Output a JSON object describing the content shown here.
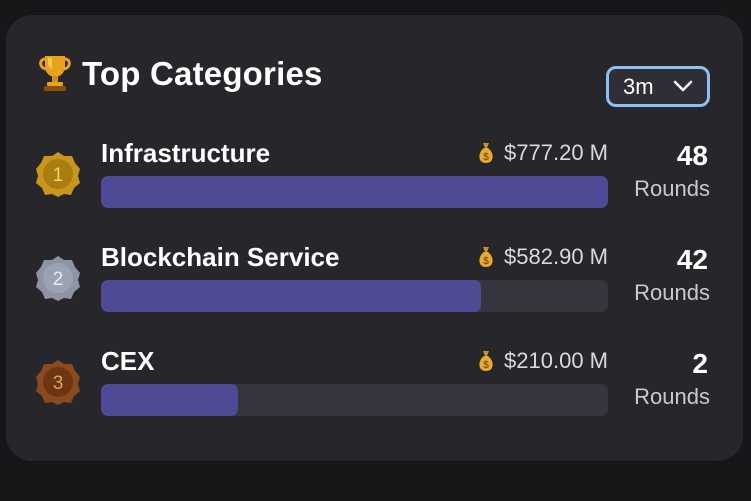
{
  "header": {
    "title": "Top Categories",
    "icon": "trophy-icon",
    "period_selected": "3m"
  },
  "colors": {
    "bar_fill": "#4f4a96",
    "bar_track": "#35353d",
    "gold": "#c9961c",
    "silver": "#8e94a4",
    "bronze": "#8a4a1c",
    "dropdown_border": "#8fc0f2"
  },
  "categories": [
    {
      "rank": "1",
      "name": "Infrastructure",
      "amount": "$777.20 M",
      "rounds": "48",
      "rounds_label": "Rounds",
      "share": 1.0
    },
    {
      "rank": "2",
      "name": "Blockchain Service",
      "amount": "$582.90 M",
      "rounds": "42",
      "rounds_label": "Rounds",
      "share": 0.75
    },
    {
      "rank": "3",
      "name": "CEX",
      "amount": "$210.00 M",
      "rounds": "2",
      "rounds_label": "Rounds",
      "share": 0.27
    }
  ]
}
